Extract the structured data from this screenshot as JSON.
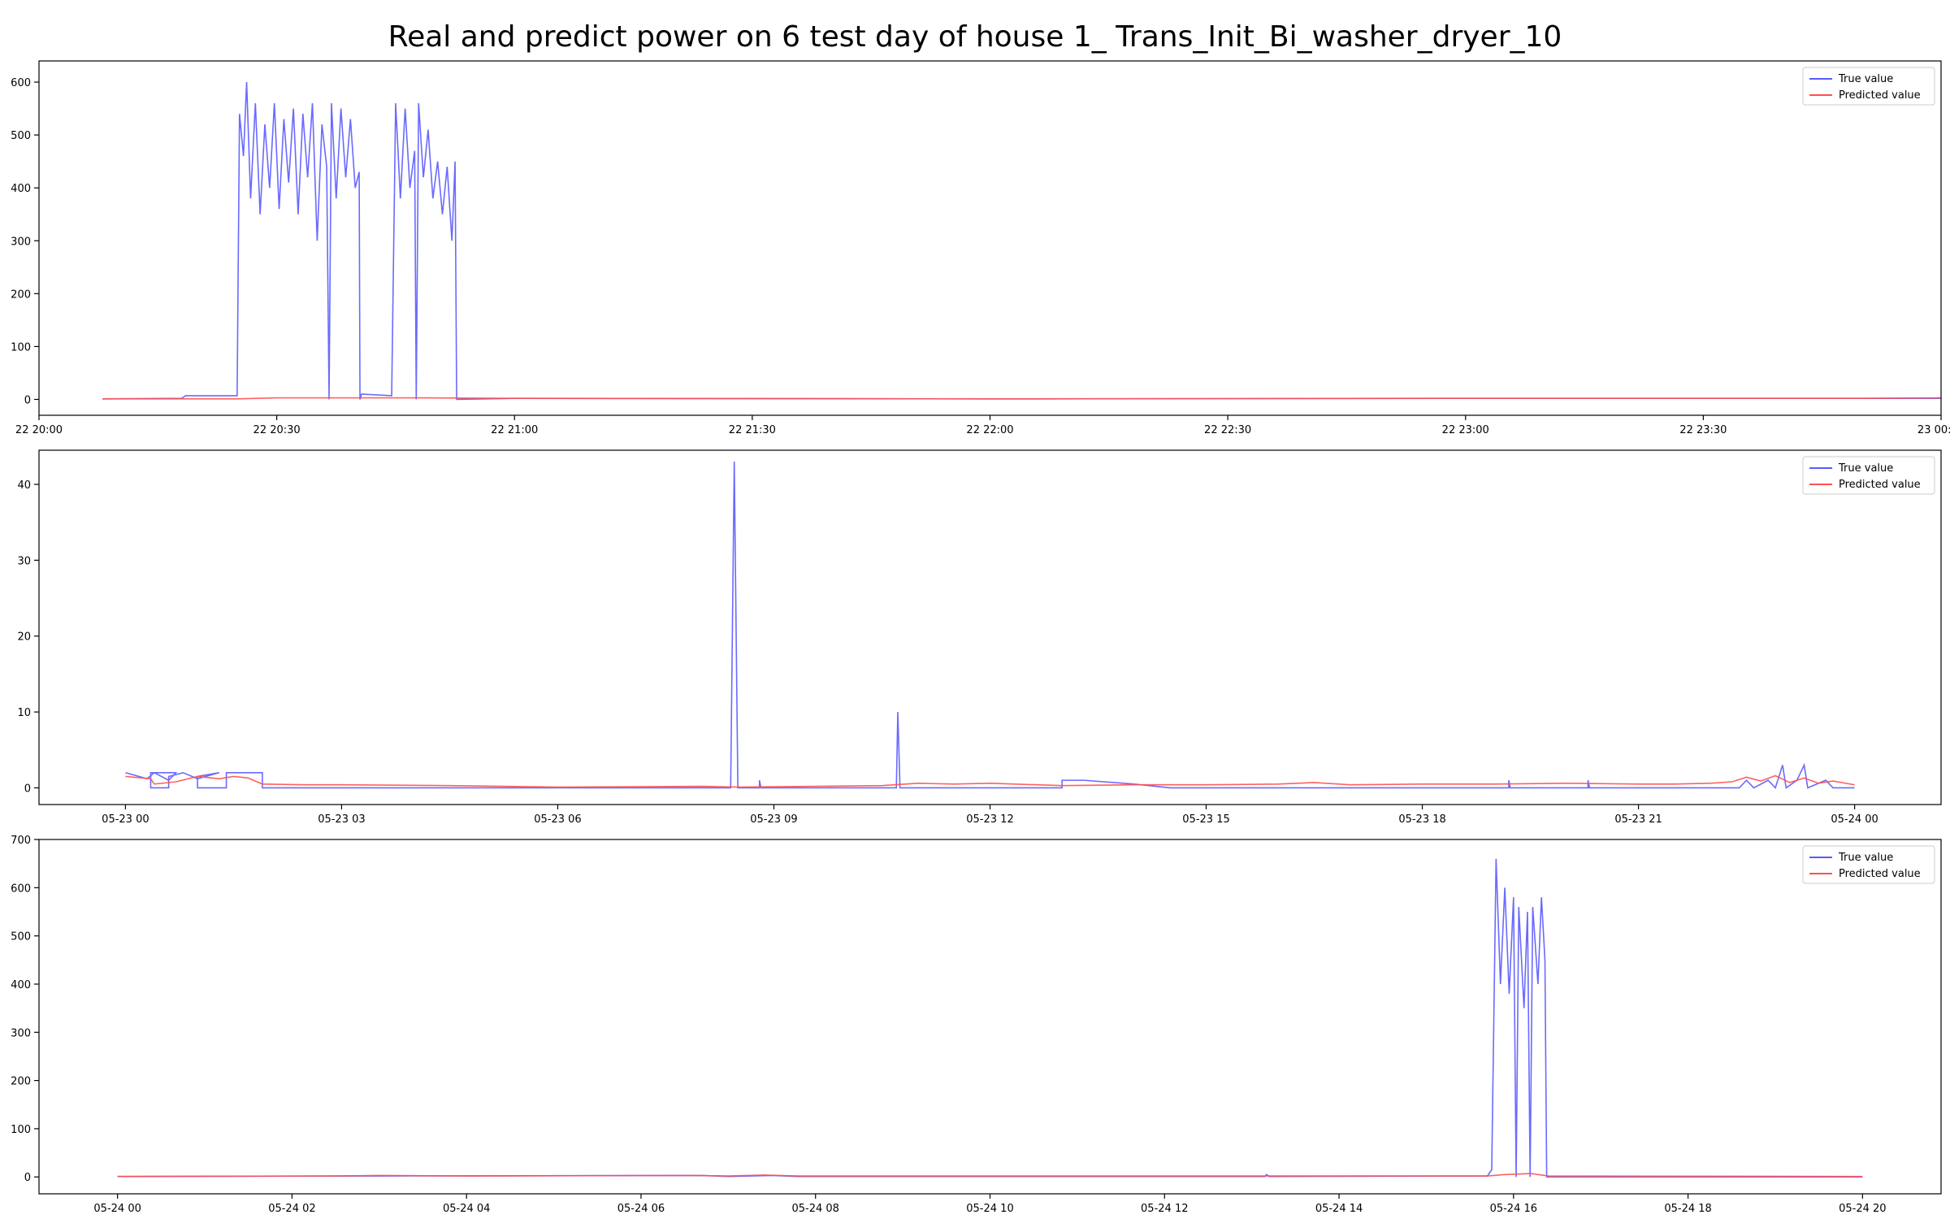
{
  "title": "Real and predict power on 6 test day of house 1_ Trans_Init_Bi_washer_dryer_10",
  "colors": {
    "true_value": "#5a5aff",
    "predicted_value": "#ff5050",
    "overlap": "#a0206a"
  },
  "chart_data": [
    {
      "type": "line",
      "xlim": [
        0,
        240
      ],
      "ylim": [
        -30,
        640
      ],
      "x_ticks": [
        0,
        30,
        60,
        90,
        120,
        150,
        180,
        210,
        240
      ],
      "x_tick_labels": [
        "22 20:00",
        "22 20:30",
        "22 21:00",
        "22 21:30",
        "22 22:00",
        "22 22:30",
        "22 23:00",
        "22 23:30",
        "23 00:00"
      ],
      "y_ticks": [
        0,
        100,
        200,
        300,
        400,
        500,
        600
      ],
      "y_tick_labels": [
        "0",
        "100",
        "200",
        "300",
        "400",
        "500",
        "600"
      ],
      "legend": [
        "True value",
        "Predicted value"
      ],
      "legend_position": "upper right",
      "series": [
        {
          "name": "True value",
          "color": "#5a5aff",
          "points": [
            [
              8,
              1
            ],
            [
              18,
              2
            ],
            [
              18.5,
              7
            ],
            [
              25,
              7
            ],
            [
              25.3,
              540
            ],
            [
              25.8,
              460
            ],
            [
              26.2,
              600
            ],
            [
              26.7,
              380
            ],
            [
              27.3,
              560
            ],
            [
              27.9,
              350
            ],
            [
              28.5,
              520
            ],
            [
              29.1,
              400
            ],
            [
              29.7,
              560
            ],
            [
              30.3,
              360
            ],
            [
              30.9,
              530
            ],
            [
              31.5,
              410
            ],
            [
              32.1,
              550
            ],
            [
              32.7,
              350
            ],
            [
              33.3,
              540
            ],
            [
              33.9,
              420
            ],
            [
              34.5,
              560
            ],
            [
              35.1,
              300
            ],
            [
              35.7,
              520
            ],
            [
              36.3,
              440
            ],
            [
              36.6,
              0
            ],
            [
              36.9,
              560
            ],
            [
              37.5,
              380
            ],
            [
              38.1,
              550
            ],
            [
              38.7,
              420
            ],
            [
              39.3,
              530
            ],
            [
              39.9,
              400
            ],
            [
              40.4,
              430
            ],
            [
              40.5,
              0
            ],
            [
              40.7,
              10
            ],
            [
              44.5,
              7
            ],
            [
              45,
              560
            ],
            [
              45.6,
              380
            ],
            [
              46.2,
              550
            ],
            [
              46.8,
              400
            ],
            [
              47.4,
              470
            ],
            [
              47.6,
              0
            ],
            [
              47.9,
              560
            ],
            [
              48.5,
              420
            ],
            [
              49.1,
              510
            ],
            [
              49.7,
              380
            ],
            [
              50.3,
              450
            ],
            [
              50.9,
              350
            ],
            [
              51.5,
              440
            ],
            [
              52.1,
              300
            ],
            [
              52.5,
              450
            ],
            [
              52.7,
              0
            ],
            [
              60,
              2
            ],
            [
              120,
              1
            ],
            [
              180,
              2
            ],
            [
              240,
              2
            ]
          ]
        },
        {
          "name": "Predicted value",
          "color": "#ff5050",
          "points": [
            [
              8,
              1
            ],
            [
              25,
              1
            ],
            [
              30,
              3
            ],
            [
              40,
              3
            ],
            [
              48,
              3
            ],
            [
              60,
              2
            ],
            [
              120,
              1
            ],
            [
              180,
              2
            ],
            [
              230,
              2
            ],
            [
              240,
              3
            ]
          ]
        }
      ]
    },
    {
      "type": "line",
      "xlim": [
        -1.2,
        25.2
      ],
      "ylim": [
        -2.2,
        44.5
      ],
      "x_ticks": [
        0,
        3,
        6,
        9,
        12,
        15,
        18,
        21,
        24
      ],
      "x_tick_labels": [
        "05-23 00",
        "05-23 03",
        "05-23 06",
        "05-23 09",
        "05-23 12",
        "05-23 15",
        "05-23 18",
        "05-23 21",
        "05-24 00"
      ],
      "y_ticks": [
        0,
        10,
        20,
        30,
        40
      ],
      "y_tick_labels": [
        "0",
        "10",
        "20",
        "30",
        "40"
      ],
      "legend": [
        "True value",
        "Predicted value"
      ],
      "legend_position": "upper right",
      "series": [
        {
          "name": "True value",
          "color": "#5a5aff",
          "points": [
            [
              0,
              2
            ],
            [
              0.3,
              1.2
            ],
            [
              0.4,
              2
            ],
            [
              0.6,
              1
            ],
            [
              0.7,
              2
            ],
            [
              0.35,
              2
            ],
            [
              0.35,
              0
            ],
            [
              0.6,
              0
            ],
            [
              0.6,
              1.5
            ],
            [
              0.8,
              2
            ],
            [
              1.0,
              1.2
            ],
            [
              1.3,
              2
            ],
            [
              1.0,
              1.5
            ],
            [
              1.0,
              0
            ],
            [
              1.4,
              0
            ],
            [
              1.4,
              2
            ],
            [
              1.9,
              2
            ],
            [
              1.9,
              0
            ],
            [
              8.4,
              0
            ],
            [
              8.45,
              43
            ],
            [
              8.5,
              0
            ],
            [
              8.8,
              0
            ],
            [
              8.8,
              1
            ],
            [
              8.82,
              0
            ],
            [
              10.7,
              0
            ],
            [
              10.72,
              10
            ],
            [
              10.75,
              0
            ],
            [
              13,
              0
            ],
            [
              13,
              1
            ],
            [
              13.3,
              1
            ],
            [
              14,
              0.5
            ],
            [
              14.5,
              0
            ],
            [
              19.2,
              0
            ],
            [
              19.2,
              1
            ],
            [
              19.22,
              0
            ],
            [
              20.3,
              0
            ],
            [
              20.3,
              1
            ],
            [
              20.32,
              0
            ],
            [
              22.4,
              0
            ],
            [
              22.5,
              1
            ],
            [
              22.6,
              0
            ],
            [
              22.8,
              1
            ],
            [
              22.9,
              0
            ],
            [
              23,
              3
            ],
            [
              23.05,
              0
            ],
            [
              23.2,
              1
            ],
            [
              23.3,
              3
            ],
            [
              23.35,
              0
            ],
            [
              23.6,
              1
            ],
            [
              23.7,
              0
            ],
            [
              24,
              0
            ]
          ]
        },
        {
          "name": "Predicted value",
          "color": "#ff5050",
          "points": [
            [
              0,
              1.5
            ],
            [
              0.35,
              1.2
            ],
            [
              0.4,
              0.5
            ],
            [
              0.7,
              0.8
            ],
            [
              1.0,
              1.5
            ],
            [
              1.3,
              1.2
            ],
            [
              1.5,
              1.5
            ],
            [
              1.7,
              1.3
            ],
            [
              1.9,
              0.5
            ],
            [
              2.5,
              0.4
            ],
            [
              3,
              0.4
            ],
            [
              4.5,
              0.3
            ],
            [
              6,
              0.1
            ],
            [
              8,
              0.2
            ],
            [
              8.5,
              0.1
            ],
            [
              10.5,
              0.3
            ],
            [
              11,
              0.6
            ],
            [
              11.5,
              0.5
            ],
            [
              12,
              0.6
            ],
            [
              13,
              0.3
            ],
            [
              14,
              0.4
            ],
            [
              15,
              0.4
            ],
            [
              16,
              0.5
            ],
            [
              16.5,
              0.7
            ],
            [
              17,
              0.4
            ],
            [
              18,
              0.5
            ],
            [
              19,
              0.5
            ],
            [
              20,
              0.6
            ],
            [
              21,
              0.5
            ],
            [
              21.5,
              0.5
            ],
            [
              22,
              0.6
            ],
            [
              22.3,
              0.8
            ],
            [
              22.5,
              1.4
            ],
            [
              22.7,
              0.9
            ],
            [
              22.9,
              1.6
            ],
            [
              23.1,
              0.7
            ],
            [
              23.3,
              1.3
            ],
            [
              23.5,
              0.6
            ],
            [
              23.7,
              0.9
            ],
            [
              24,
              0.4
            ]
          ]
        }
      ]
    },
    {
      "type": "line",
      "xlim": [
        -0.9,
        20.9
      ],
      "ylim": [
        -35,
        700
      ],
      "x_ticks": [
        0,
        2,
        4,
        6,
        8,
        10,
        12,
        14,
        16,
        18,
        20
      ],
      "x_tick_labels": [
        "05-24 00",
        "05-24 02",
        "05-24 04",
        "05-24 06",
        "05-24 08",
        "05-24 10",
        "05-24 12",
        "05-24 14",
        "05-24 16",
        "05-24 18",
        "05-24 20"
      ],
      "y_ticks": [
        0,
        100,
        200,
        300,
        400,
        500,
        600,
        700
      ],
      "y_tick_labels": [
        "0",
        "100",
        "200",
        "300",
        "400",
        "500",
        "600",
        "700"
      ],
      "legend": [
        "True value",
        "Predicted value"
      ],
      "legend_position": "upper right",
      "series": [
        {
          "name": "True value",
          "color": "#5a5aff",
          "points": [
            [
              0,
              1
            ],
            [
              3,
              2
            ],
            [
              6.7,
              3
            ],
            [
              7,
              1
            ],
            [
              7.5,
              3
            ],
            [
              7.8,
              1
            ],
            [
              13.15,
              1
            ],
            [
              13.17,
              5
            ],
            [
              13.2,
              1
            ],
            [
              15.7,
              2
            ],
            [
              15.75,
              15
            ],
            [
              15.8,
              660
            ],
            [
              15.85,
              400
            ],
            [
              15.9,
              600
            ],
            [
              15.95,
              380
            ],
            [
              16.0,
              580
            ],
            [
              16.03,
              0
            ],
            [
              16.06,
              560
            ],
            [
              16.12,
              350
            ],
            [
              16.16,
              550
            ],
            [
              16.19,
              0
            ],
            [
              16.22,
              560
            ],
            [
              16.28,
              400
            ],
            [
              16.32,
              580
            ],
            [
              16.36,
              450
            ],
            [
              16.38,
              0
            ],
            [
              17,
              0
            ],
            [
              20,
              0
            ]
          ]
        },
        {
          "name": "Predicted value",
          "color": "#ff5050",
          "points": [
            [
              0,
              1
            ],
            [
              2.5,
              2
            ],
            [
              3,
              3
            ],
            [
              4,
              2
            ],
            [
              6.5,
              3
            ],
            [
              7,
              2
            ],
            [
              7.4,
              4
            ],
            [
              7.8,
              2
            ],
            [
              12,
              2
            ],
            [
              15.7,
              2
            ],
            [
              15.9,
              5
            ],
            [
              16.2,
              7
            ],
            [
              16.4,
              2
            ],
            [
              20,
              1
            ]
          ]
        }
      ]
    }
  ]
}
